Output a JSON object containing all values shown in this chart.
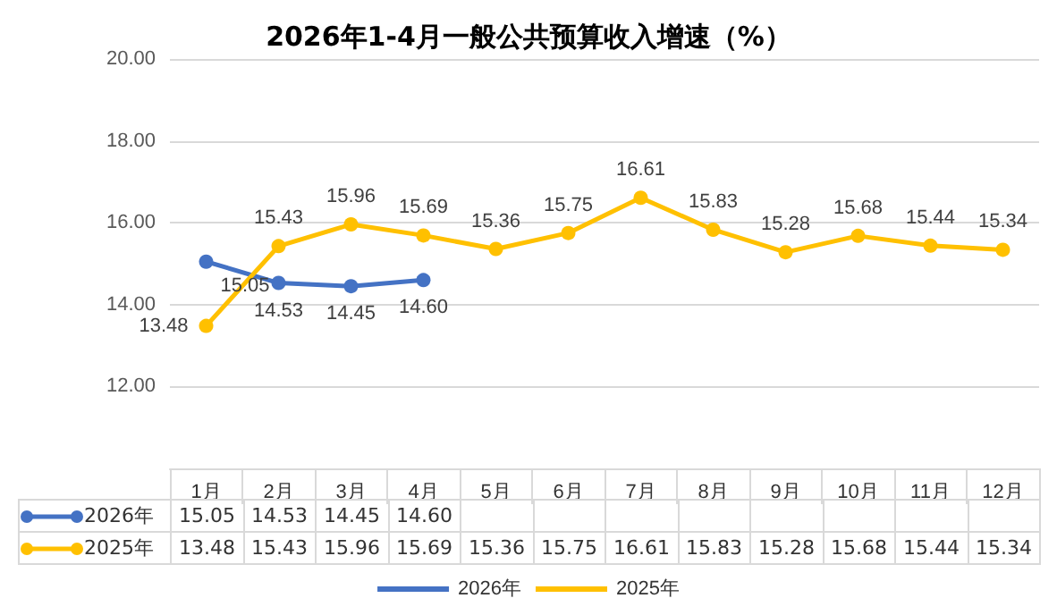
{
  "chart_data": {
    "type": "line",
    "title": "2026年1-4月一般公共预算收入增速（%）",
    "categories": [
      "1月",
      "2月",
      "3月",
      "4月",
      "5月",
      "6月",
      "7月",
      "8月",
      "9月",
      "10月",
      "11月",
      "12月"
    ],
    "series": [
      {
        "name": "2026年",
        "color": "#4472c4",
        "values": [
          15.05,
          14.53,
          14.45,
          14.6,
          null,
          null,
          null,
          null,
          null,
          null,
          null,
          null
        ],
        "value_labels": [
          "15.05",
          "14.53",
          "14.45",
          "14.60",
          null,
          null,
          null,
          null,
          null,
          null,
          null,
          null
        ]
      },
      {
        "name": "2025年",
        "color": "#ffc000",
        "values": [
          13.48,
          15.43,
          15.96,
          15.69,
          15.36,
          15.75,
          16.61,
          15.83,
          15.28,
          15.68,
          15.44,
          15.34
        ],
        "value_labels": [
          "13.48",
          "15.43",
          "15.96",
          "15.69",
          "15.36",
          "15.75",
          "16.61",
          "15.83",
          "15.28",
          "15.68",
          "15.44",
          "15.34"
        ]
      }
    ],
    "ylim": [
      10,
      20
    ],
    "yticks": [
      {
        "value": 10,
        "label": null
      },
      {
        "value": 12,
        "label": "12.00"
      },
      {
        "value": 14,
        "label": "14.00"
      },
      {
        "value": 16,
        "label": "16.00"
      },
      {
        "value": 18,
        "label": "18.00"
      },
      {
        "value": 20,
        "label": "20.00"
      }
    ],
    "grid": "y",
    "legend": "bottom",
    "marker": "circle",
    "line_style": "solid"
  }
}
